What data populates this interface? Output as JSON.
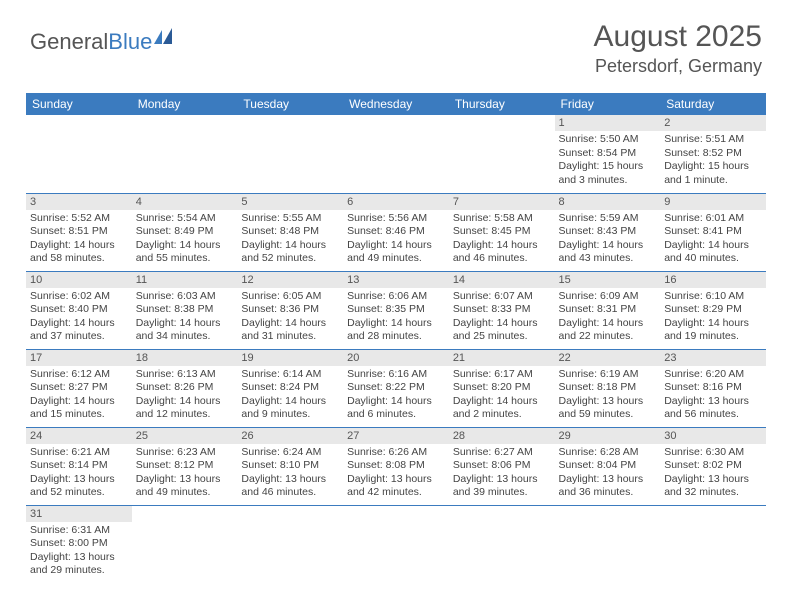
{
  "logo": {
    "text1": "General",
    "text2": "Blue"
  },
  "title": "August 2025",
  "location": "Petersdorf, Germany",
  "colors": {
    "header_bg": "#3b7bbf",
    "header_text": "#ffffff",
    "daynum_bg": "#e8e8e8",
    "border": "#3b7bbf",
    "text": "#444444",
    "title_text": "#555555",
    "page_bg": "#ffffff"
  },
  "typography": {
    "title_fontsize": 30,
    "location_fontsize": 18,
    "dayheader_fontsize": 12,
    "cell_fontsize": 10.5,
    "daynum_fontsize": 11
  },
  "day_headers": [
    "Sunday",
    "Monday",
    "Tuesday",
    "Wednesday",
    "Thursday",
    "Friday",
    "Saturday"
  ],
  "weeks": [
    [
      {
        "n": "",
        "sunrise": "",
        "sunset": "",
        "daylight": ""
      },
      {
        "n": "",
        "sunrise": "",
        "sunset": "",
        "daylight": ""
      },
      {
        "n": "",
        "sunrise": "",
        "sunset": "",
        "daylight": ""
      },
      {
        "n": "",
        "sunrise": "",
        "sunset": "",
        "daylight": ""
      },
      {
        "n": "",
        "sunrise": "",
        "sunset": "",
        "daylight": ""
      },
      {
        "n": "1",
        "sunrise": "Sunrise: 5:50 AM",
        "sunset": "Sunset: 8:54 PM",
        "daylight": "Daylight: 15 hours and 3 minutes."
      },
      {
        "n": "2",
        "sunrise": "Sunrise: 5:51 AM",
        "sunset": "Sunset: 8:52 PM",
        "daylight": "Daylight: 15 hours and 1 minute."
      }
    ],
    [
      {
        "n": "3",
        "sunrise": "Sunrise: 5:52 AM",
        "sunset": "Sunset: 8:51 PM",
        "daylight": "Daylight: 14 hours and 58 minutes."
      },
      {
        "n": "4",
        "sunrise": "Sunrise: 5:54 AM",
        "sunset": "Sunset: 8:49 PM",
        "daylight": "Daylight: 14 hours and 55 minutes."
      },
      {
        "n": "5",
        "sunrise": "Sunrise: 5:55 AM",
        "sunset": "Sunset: 8:48 PM",
        "daylight": "Daylight: 14 hours and 52 minutes."
      },
      {
        "n": "6",
        "sunrise": "Sunrise: 5:56 AM",
        "sunset": "Sunset: 8:46 PM",
        "daylight": "Daylight: 14 hours and 49 minutes."
      },
      {
        "n": "7",
        "sunrise": "Sunrise: 5:58 AM",
        "sunset": "Sunset: 8:45 PM",
        "daylight": "Daylight: 14 hours and 46 minutes."
      },
      {
        "n": "8",
        "sunrise": "Sunrise: 5:59 AM",
        "sunset": "Sunset: 8:43 PM",
        "daylight": "Daylight: 14 hours and 43 minutes."
      },
      {
        "n": "9",
        "sunrise": "Sunrise: 6:01 AM",
        "sunset": "Sunset: 8:41 PM",
        "daylight": "Daylight: 14 hours and 40 minutes."
      }
    ],
    [
      {
        "n": "10",
        "sunrise": "Sunrise: 6:02 AM",
        "sunset": "Sunset: 8:40 PM",
        "daylight": "Daylight: 14 hours and 37 minutes."
      },
      {
        "n": "11",
        "sunrise": "Sunrise: 6:03 AM",
        "sunset": "Sunset: 8:38 PM",
        "daylight": "Daylight: 14 hours and 34 minutes."
      },
      {
        "n": "12",
        "sunrise": "Sunrise: 6:05 AM",
        "sunset": "Sunset: 8:36 PM",
        "daylight": "Daylight: 14 hours and 31 minutes."
      },
      {
        "n": "13",
        "sunrise": "Sunrise: 6:06 AM",
        "sunset": "Sunset: 8:35 PM",
        "daylight": "Daylight: 14 hours and 28 minutes."
      },
      {
        "n": "14",
        "sunrise": "Sunrise: 6:07 AM",
        "sunset": "Sunset: 8:33 PM",
        "daylight": "Daylight: 14 hours and 25 minutes."
      },
      {
        "n": "15",
        "sunrise": "Sunrise: 6:09 AM",
        "sunset": "Sunset: 8:31 PM",
        "daylight": "Daylight: 14 hours and 22 minutes."
      },
      {
        "n": "16",
        "sunrise": "Sunrise: 6:10 AM",
        "sunset": "Sunset: 8:29 PM",
        "daylight": "Daylight: 14 hours and 19 minutes."
      }
    ],
    [
      {
        "n": "17",
        "sunrise": "Sunrise: 6:12 AM",
        "sunset": "Sunset: 8:27 PM",
        "daylight": "Daylight: 14 hours and 15 minutes."
      },
      {
        "n": "18",
        "sunrise": "Sunrise: 6:13 AM",
        "sunset": "Sunset: 8:26 PM",
        "daylight": "Daylight: 14 hours and 12 minutes."
      },
      {
        "n": "19",
        "sunrise": "Sunrise: 6:14 AM",
        "sunset": "Sunset: 8:24 PM",
        "daylight": "Daylight: 14 hours and 9 minutes."
      },
      {
        "n": "20",
        "sunrise": "Sunrise: 6:16 AM",
        "sunset": "Sunset: 8:22 PM",
        "daylight": "Daylight: 14 hours and 6 minutes."
      },
      {
        "n": "21",
        "sunrise": "Sunrise: 6:17 AM",
        "sunset": "Sunset: 8:20 PM",
        "daylight": "Daylight: 14 hours and 2 minutes."
      },
      {
        "n": "22",
        "sunrise": "Sunrise: 6:19 AM",
        "sunset": "Sunset: 8:18 PM",
        "daylight": "Daylight: 13 hours and 59 minutes."
      },
      {
        "n": "23",
        "sunrise": "Sunrise: 6:20 AM",
        "sunset": "Sunset: 8:16 PM",
        "daylight": "Daylight: 13 hours and 56 minutes."
      }
    ],
    [
      {
        "n": "24",
        "sunrise": "Sunrise: 6:21 AM",
        "sunset": "Sunset: 8:14 PM",
        "daylight": "Daylight: 13 hours and 52 minutes."
      },
      {
        "n": "25",
        "sunrise": "Sunrise: 6:23 AM",
        "sunset": "Sunset: 8:12 PM",
        "daylight": "Daylight: 13 hours and 49 minutes."
      },
      {
        "n": "26",
        "sunrise": "Sunrise: 6:24 AM",
        "sunset": "Sunset: 8:10 PM",
        "daylight": "Daylight: 13 hours and 46 minutes."
      },
      {
        "n": "27",
        "sunrise": "Sunrise: 6:26 AM",
        "sunset": "Sunset: 8:08 PM",
        "daylight": "Daylight: 13 hours and 42 minutes."
      },
      {
        "n": "28",
        "sunrise": "Sunrise: 6:27 AM",
        "sunset": "Sunset: 8:06 PM",
        "daylight": "Daylight: 13 hours and 39 minutes."
      },
      {
        "n": "29",
        "sunrise": "Sunrise: 6:28 AM",
        "sunset": "Sunset: 8:04 PM",
        "daylight": "Daylight: 13 hours and 36 minutes."
      },
      {
        "n": "30",
        "sunrise": "Sunrise: 6:30 AM",
        "sunset": "Sunset: 8:02 PM",
        "daylight": "Daylight: 13 hours and 32 minutes."
      }
    ],
    [
      {
        "n": "31",
        "sunrise": "Sunrise: 6:31 AM",
        "sunset": "Sunset: 8:00 PM",
        "daylight": "Daylight: 13 hours and 29 minutes."
      },
      {
        "n": "",
        "sunrise": "",
        "sunset": "",
        "daylight": ""
      },
      {
        "n": "",
        "sunrise": "",
        "sunset": "",
        "daylight": ""
      },
      {
        "n": "",
        "sunrise": "",
        "sunset": "",
        "daylight": ""
      },
      {
        "n": "",
        "sunrise": "",
        "sunset": "",
        "daylight": ""
      },
      {
        "n": "",
        "sunrise": "",
        "sunset": "",
        "daylight": ""
      },
      {
        "n": "",
        "sunrise": "",
        "sunset": "",
        "daylight": ""
      }
    ]
  ]
}
